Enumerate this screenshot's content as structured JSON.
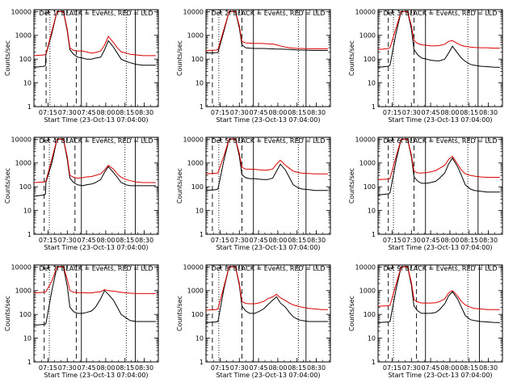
{
  "colors": {
    "events": "#000000",
    "lld": "#dd0000",
    "axis": "#000000"
  },
  "common": {
    "ylabel": "Counts/sec",
    "xlabel": "Start Time (23-Oct-13 07:04:00)",
    "xtick_labels": [
      "07:15",
      "07:30",
      "07:45",
      "08:00",
      "08:15",
      "08:30"
    ],
    "xtick_values": [
      11,
      26,
      41,
      56,
      71,
      86
    ],
    "ytick_labels": [
      "10000",
      "1000",
      "100",
      "10",
      "1"
    ],
    "ytick_values": [
      10000,
      1000,
      100,
      10,
      1
    ],
    "xlim": [
      0,
      97
    ],
    "ylim": [
      1,
      12000
    ],
    "yscale": "log"
  },
  "chart_data": [
    {
      "type": "line",
      "title": "Det 1f BLACK = Events, RED = LLD",
      "x": [
        0,
        8,
        9,
        9.3,
        14,
        18,
        23,
        26,
        28,
        31,
        34,
        38,
        41,
        45,
        48,
        52,
        55,
        58,
        62,
        65,
        68,
        72,
        75,
        80,
        85,
        90,
        95
      ],
      "series": [
        {
          "name": "Events",
          "color": "events",
          "values": [
            45,
            50,
            55,
            150,
            1200,
            10000,
            10000,
            1500,
            250,
            160,
            120,
            110,
            100,
            100,
            110,
            120,
            240,
            600,
            320,
            180,
            100,
            80,
            70,
            60,
            55,
            55,
            55
          ]
        },
        {
          "name": "LLD",
          "color": "lld",
          "values": [
            140,
            150,
            160,
            160,
            1500,
            10000,
            10000,
            1800,
            300,
            230,
            220,
            220,
            200,
            180,
            190,
            220,
            380,
            900,
            500,
            300,
            200,
            180,
            160,
            150,
            140,
            140,
            140
          ]
        }
      ],
      "vlines": [
        {
          "x": 9.5,
          "style": "dashed"
        },
        {
          "x": 12.5,
          "style": "dotted"
        },
        {
          "x": 33,
          "style": "dashed"
        },
        {
          "x": 37,
          "style": "solid"
        },
        {
          "x": 72,
          "style": "dotted"
        },
        {
          "x": 79,
          "style": "solid"
        }
      ]
    },
    {
      "type": "line",
      "title": "Det 2f BLACK = Events, RED = LLD",
      "x": [
        0,
        8,
        9,
        9.3,
        14,
        18,
        23,
        26,
        28,
        31,
        34,
        38,
        41,
        45,
        48,
        52,
        55,
        58,
        62,
        65,
        68,
        72,
        75,
        80,
        85,
        90,
        95
      ],
      "series": [
        {
          "name": "Events",
          "color": "events",
          "values": [
            180,
            185,
            190,
            190,
            1500,
            10000,
            10000,
            2000,
            400,
            300,
            290,
            280,
            280,
            280,
            275,
            270,
            265,
            265,
            260,
            255,
            250,
            240,
            240,
            235,
            230,
            230,
            230
          ]
        },
        {
          "name": "LLD",
          "color": "lld",
          "values": [
            230,
            240,
            250,
            250,
            1800,
            10000,
            10000,
            2500,
            550,
            480,
            470,
            460,
            460,
            450,
            440,
            430,
            400,
            360,
            320,
            300,
            290,
            280,
            280,
            275,
            270,
            270,
            270
          ]
        }
      ],
      "vlines": [
        {
          "x": 5,
          "style": "dashed"
        },
        {
          "x": 10,
          "style": "dotted"
        },
        {
          "x": 28,
          "style": "dashed"
        },
        {
          "x": 37,
          "style": "solid"
        },
        {
          "x": 72,
          "style": "dotted"
        },
        {
          "x": 78,
          "style": "solid"
        }
      ]
    },
    {
      "type": "line",
      "title": "Det 3f BLACK = Events, RED = LLD",
      "x": [
        0,
        8,
        9,
        9.3,
        14,
        18,
        23,
        26,
        28,
        31,
        34,
        38,
        41,
        45,
        48,
        52,
        55,
        58,
        62,
        65,
        68,
        72,
        75,
        80,
        85,
        90,
        95
      ],
      "series": [
        {
          "name": "Events",
          "color": "events",
          "values": [
            45,
            50,
            55,
            55,
            1200,
            10000,
            10000,
            1800,
            250,
            150,
            110,
            100,
            90,
            85,
            85,
            100,
            180,
            350,
            180,
            110,
            80,
            60,
            55,
            50,
            48,
            46,
            45
          ]
        },
        {
          "name": "LLD",
          "color": "lld",
          "values": [
            250,
            280,
            300,
            300,
            2000,
            10000,
            10000,
            2500,
            600,
            450,
            400,
            380,
            360,
            360,
            370,
            420,
            560,
            600,
            450,
            380,
            340,
            320,
            310,
            300,
            300,
            290,
            290
          ]
        }
      ],
      "vlines": [
        {
          "x": 8,
          "style": "dashed"
        },
        {
          "x": 12,
          "style": "dotted"
        },
        {
          "x": 28,
          "style": "dashed"
        },
        {
          "x": 37,
          "style": "solid"
        },
        {
          "x": 70,
          "style": "dotted"
        },
        {
          "x": 78,
          "style": "solid"
        }
      ]
    },
    {
      "type": "line",
      "title": "Det 4f BLACK = Events, RED = LLD",
      "x": [
        0,
        8,
        9,
        9.3,
        14,
        18,
        23,
        26,
        28,
        31,
        34,
        38,
        41,
        45,
        48,
        52,
        55,
        58,
        62,
        65,
        68,
        72,
        75,
        80,
        85,
        90,
        95
      ],
      "series": [
        {
          "name": "Events",
          "color": "events",
          "values": [
            40,
            45,
            50,
            150,
            1000,
            10000,
            10000,
            1400,
            230,
            150,
            120,
            110,
            120,
            130,
            150,
            200,
            400,
            700,
            400,
            250,
            150,
            120,
            110,
            110,
            110,
            110,
            110
          ]
        },
        {
          "name": "LLD",
          "color": "lld",
          "values": [
            150,
            160,
            170,
            170,
            1500,
            10000,
            10000,
            1800,
            300,
            250,
            230,
            240,
            260,
            270,
            300,
            350,
            500,
            800,
            550,
            350,
            250,
            200,
            180,
            160,
            150,
            150,
            150
          ]
        }
      ],
      "vlines": [
        {
          "x": 8,
          "style": "dashed"
        },
        {
          "x": 12,
          "style": "dotted"
        },
        {
          "x": 32,
          "style": "dashed"
        },
        {
          "x": 37,
          "style": "solid"
        },
        {
          "x": 71,
          "style": "dotted"
        },
        {
          "x": 79,
          "style": "solid"
        }
      ]
    },
    {
      "type": "line",
      "title": "Det 5f BLACK = Events, RED = LLD",
      "x": [
        0,
        8,
        9,
        9.3,
        14,
        18,
        23,
        26,
        28,
        31,
        34,
        38,
        41,
        45,
        48,
        52,
        55,
        58,
        62,
        65,
        68,
        72,
        75,
        80,
        85,
        90,
        95
      ],
      "series": [
        {
          "name": "Events",
          "color": "events",
          "values": [
            70,
            75,
            80,
            80,
            1300,
            10000,
            10000,
            1900,
            320,
            240,
            220,
            220,
            210,
            200,
            200,
            230,
            450,
            900,
            500,
            250,
            120,
            90,
            80,
            75,
            70,
            70,
            70
          ]
        },
        {
          "name": "LLD",
          "color": "lld",
          "values": [
            350,
            370,
            380,
            380,
            2000,
            10000,
            10000,
            2500,
            650,
            560,
            550,
            540,
            520,
            500,
            500,
            560,
            900,
            1300,
            800,
            600,
            450,
            400,
            370,
            360,
            350,
            350,
            350
          ]
        }
      ],
      "vlines": [
        {
          "x": 5,
          "style": "dashed"
        },
        {
          "x": 10,
          "style": "dotted"
        },
        {
          "x": 28,
          "style": "dashed"
        },
        {
          "x": 37,
          "style": "solid"
        },
        {
          "x": 72,
          "style": "dotted"
        },
        {
          "x": 78,
          "style": "solid"
        }
      ]
    },
    {
      "type": "line",
      "title": "Det 6f BLACK = Events, RED = LLD",
      "x": [
        0,
        8,
        9,
        9.3,
        14,
        18,
        23,
        26,
        28,
        31,
        34,
        38,
        41,
        45,
        48,
        52,
        55,
        58,
        62,
        65,
        68,
        72,
        75,
        80,
        85,
        90,
        95
      ],
      "series": [
        {
          "name": "Events",
          "color": "events",
          "values": [
            45,
            50,
            55,
            55,
            1200,
            10000,
            10000,
            1800,
            260,
            170,
            140,
            140,
            150,
            170,
            230,
            380,
            900,
            1600,
            700,
            300,
            120,
            80,
            70,
            65,
            60,
            60,
            60
          ]
        },
        {
          "name": "LLD",
          "color": "lld",
          "values": [
            200,
            210,
            220,
            220,
            1800,
            10000,
            10000,
            2200,
            450,
            380,
            380,
            390,
            420,
            480,
            600,
            800,
            1400,
            1900,
            900,
            500,
            350,
            300,
            280,
            260,
            250,
            250,
            250
          ]
        }
      ],
      "vlines": [
        {
          "x": 8,
          "style": "dashed"
        },
        {
          "x": 12,
          "style": "dotted"
        },
        {
          "x": 28,
          "style": "dashed"
        },
        {
          "x": 37,
          "style": "solid"
        },
        {
          "x": 70,
          "style": "dotted"
        },
        {
          "x": 78,
          "style": "solid"
        }
      ]
    },
    {
      "type": "line",
      "title": "Det 7f BLACK = Events, RED = LLD",
      "x": [
        0,
        8,
        9,
        9.3,
        14,
        18,
        23,
        26,
        28,
        31,
        34,
        38,
        41,
        45,
        48,
        52,
        55,
        58,
        62,
        65,
        68,
        72,
        75,
        80,
        85,
        90,
        95
      ],
      "series": [
        {
          "name": "Events",
          "color": "events",
          "values": [
            35,
            38,
            40,
            40,
            1000,
            10000,
            10000,
            1500,
            200,
            130,
            110,
            110,
            120,
            140,
            200,
            450,
            1000,
            700,
            400,
            200,
            100,
            70,
            55,
            50,
            50,
            50,
            50
          ]
        },
        {
          "name": "LLD",
          "color": "lld",
          "values": [
            800,
            850,
            900,
            900,
            2500,
            10000,
            10000,
            3000,
            1000,
            850,
            820,
            820,
            800,
            800,
            850,
            900,
            1100,
            1000,
            950,
            900,
            850,
            800,
            780,
            750,
            750,
            750,
            750
          ]
        }
      ],
      "vlines": [
        {
          "x": 8,
          "style": "dashed"
        },
        {
          "x": 12,
          "style": "dotted"
        },
        {
          "x": 33,
          "style": "dashed"
        },
        {
          "x": 37,
          "style": "solid"
        },
        {
          "x": 72,
          "style": "dotted"
        },
        {
          "x": 79,
          "style": "solid"
        }
      ]
    },
    {
      "type": "line",
      "title": "Det 8f BLACK = Events, RED = LLD",
      "x": [
        0,
        8,
        9,
        9.3,
        14,
        18,
        23,
        26,
        28,
        31,
        34,
        38,
        41,
        45,
        48,
        52,
        55,
        58,
        62,
        65,
        68,
        72,
        75,
        80,
        85,
        90,
        95
      ],
      "series": [
        {
          "name": "Events",
          "color": "events",
          "values": [
            45,
            48,
            50,
            50,
            1200,
            10000,
            10000,
            1700,
            220,
            140,
            110,
            110,
            130,
            170,
            250,
            400,
            550,
            300,
            200,
            120,
            80,
            60,
            55,
            50,
            50,
            50,
            50
          ]
        },
        {
          "name": "LLD",
          "color": "lld",
          "values": [
            150,
            160,
            170,
            170,
            1500,
            10000,
            10000,
            2000,
            350,
            290,
            280,
            280,
            300,
            350,
            450,
            550,
            700,
            500,
            380,
            300,
            250,
            220,
            200,
            180,
            170,
            160,
            160
          ]
        }
      ],
      "vlines": [
        {
          "x": 5,
          "style": "dashed"
        },
        {
          "x": 10,
          "style": "dotted"
        },
        {
          "x": 28,
          "style": "dashed"
        },
        {
          "x": 37,
          "style": "solid"
        },
        {
          "x": 72,
          "style": "dotted"
        },
        {
          "x": 78,
          "style": "solid"
        }
      ]
    },
    {
      "type": "line",
      "title": "Det 9f BLACK = Events, RED = LLD",
      "x": [
        0,
        8,
        9,
        9.3,
        14,
        18,
        23,
        26,
        28,
        31,
        34,
        38,
        41,
        45,
        48,
        52,
        55,
        58,
        62,
        65,
        68,
        72,
        75,
        80,
        85,
        90,
        95
      ],
      "series": [
        {
          "name": "Events",
          "color": "events",
          "values": [
            45,
            48,
            50,
            50,
            1100,
            10000,
            10000,
            1700,
            220,
            140,
            110,
            110,
            110,
            120,
            160,
            280,
            600,
            900,
            450,
            200,
            90,
            60,
            55,
            50,
            48,
            46,
            45
          ]
        },
        {
          "name": "LLD",
          "color": "lld",
          "values": [
            220,
            230,
            240,
            240,
            1800,
            10000,
            10000,
            2200,
            420,
            330,
            300,
            300,
            300,
            310,
            350,
            450,
            800,
            1000,
            600,
            350,
            250,
            200,
            180,
            170,
            160,
            160,
            160
          ]
        }
      ],
      "vlines": [
        {
          "x": 8,
          "style": "dashed"
        },
        {
          "x": 12,
          "style": "dotted"
        },
        {
          "x": 30,
          "style": "dashed"
        },
        {
          "x": 37,
          "style": "solid"
        },
        {
          "x": 70,
          "style": "dotted"
        },
        {
          "x": 79,
          "style": "solid"
        }
      ]
    }
  ]
}
